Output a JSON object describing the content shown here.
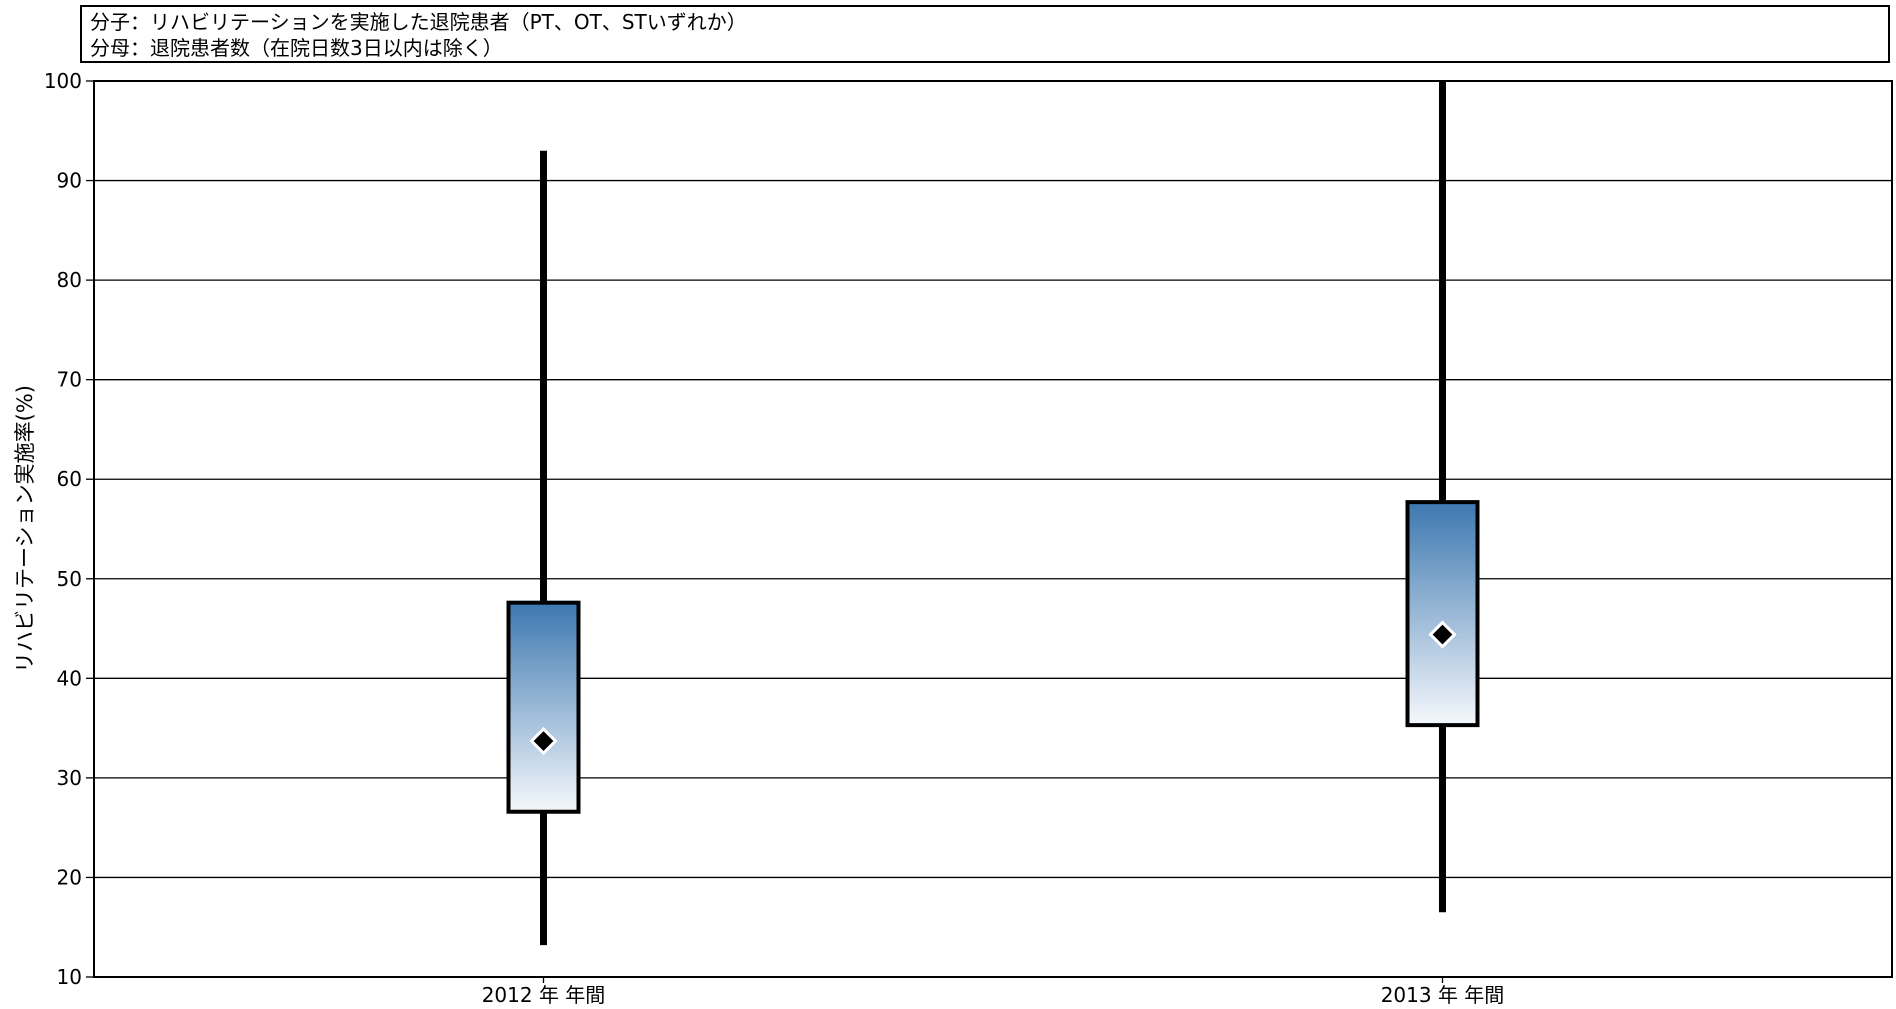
{
  "legend": {
    "numerator": "分子：リハビリテーションを実施した退院患者（PT、OT、STいずれか）",
    "denominator": "分母：退院患者数（在院日数3日以内は除く）"
  },
  "colors": {
    "box_fill_top": "#3d78b0",
    "box_fill_bottom": "#f5f8fc",
    "whisker": "#000000",
    "mean_marker": "#000000",
    "gridline": "#000000"
  },
  "chart_data": {
    "type": "boxplot",
    "ylabel": "リハビリテーション実施率(%)",
    "xlabel": "",
    "ylim": [
      10,
      100
    ],
    "yticks": [
      10,
      20,
      30,
      40,
      50,
      60,
      70,
      80,
      90,
      100
    ],
    "grid": true,
    "categories": [
      "2012 年  年間",
      "2013 年  年間"
    ],
    "boxes": [
      {
        "min": 13.2,
        "q1": 26.6,
        "q3": 47.6,
        "max": 93.0,
        "mean": 33.7
      },
      {
        "min": 16.5,
        "q1": 35.3,
        "q3": 57.7,
        "max": 100.0,
        "mean": 44.4
      }
    ]
  }
}
